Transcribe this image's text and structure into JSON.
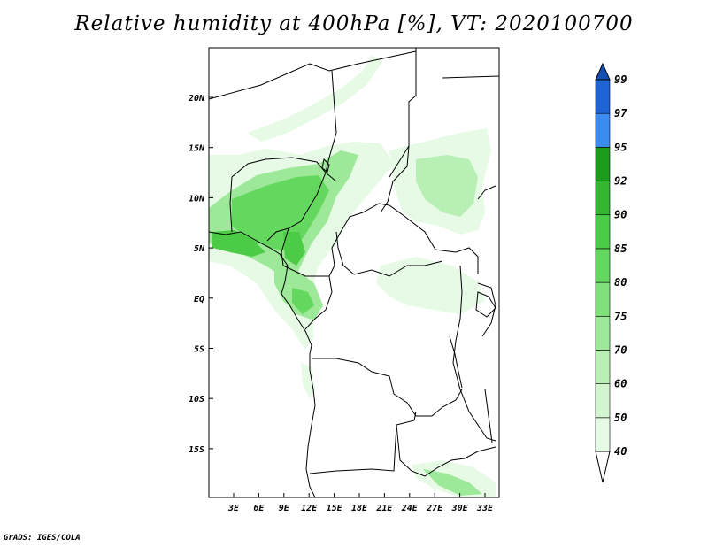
{
  "title": "Relative humidity at 400hPa [%], VT: 2020100700",
  "footer": "GrADS: IGES/COLA",
  "map": {
    "lon_labels": [
      "3E",
      "6E",
      "9E",
      "12E",
      "15E",
      "18E",
      "21E",
      "24E",
      "27E",
      "30E",
      "33E"
    ],
    "lat_labels": [
      "20N",
      "15N",
      "10N",
      "5N",
      "EQ",
      "5S",
      "10S",
      "15S"
    ]
  },
  "colorbar": {
    "levels": [
      "40",
      "50",
      "60",
      "70",
      "75",
      "80",
      "85",
      "90",
      "92",
      "95",
      "97",
      "99"
    ],
    "colors": [
      "#e6fae6",
      "#d2f5d0",
      "#b8efb4",
      "#9ee89a",
      "#80e07a",
      "#64d85e",
      "#4ccc46",
      "#35b530",
      "#1e9a1c",
      "#3c8cf0",
      "#1e64d2",
      "#1450b4"
    ]
  }
}
